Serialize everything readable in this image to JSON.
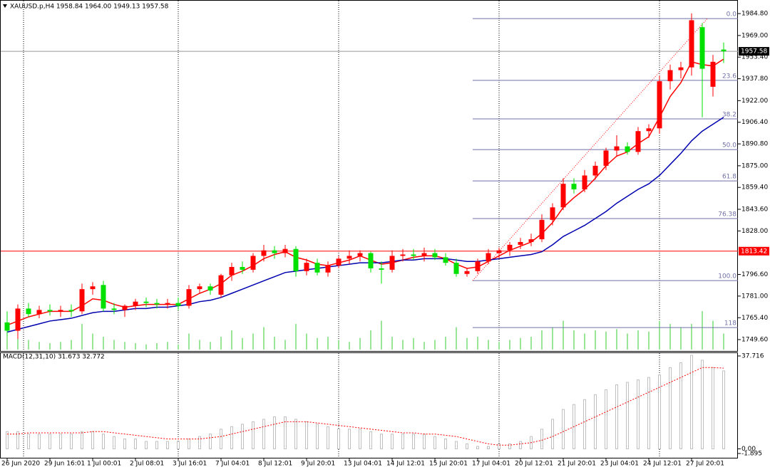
{
  "chart_data": {
    "type": "candlestick",
    "title": "XAUUSD.p,H4  1958.84 1964.00 1949.13 1957.58",
    "categories": [
      "26 Jun 2020",
      null,
      null,
      null,
      "29 Jun 16:01",
      null,
      null,
      null,
      "1 Jul 00:01",
      null,
      null,
      null,
      "2 Jul 08:01",
      null,
      null,
      null,
      "3 Jul 16:01",
      null,
      null,
      null,
      "7 Jul 04:01",
      null,
      null,
      null,
      "8 Jul 12:01",
      null,
      null,
      null,
      "9 Jul 20:01",
      null,
      null,
      null,
      "13 Jul 04:01",
      null,
      null,
      null,
      "14 Jul 12:01",
      null,
      null,
      null,
      "15 Jul 20:01",
      null,
      null,
      null,
      "17 Jul 04:01",
      null,
      null,
      null,
      "20 Jul 12:01",
      null,
      null,
      null,
      "21 Jul 20:01",
      null,
      null,
      null,
      "23 Jul 04:01",
      null,
      null,
      null,
      "24 Jul 12:01",
      null,
      null,
      null,
      "27 Jul 20:01",
      null,
      null,
      null
    ],
    "candles": {
      "open": [
        1762,
        1756,
        1772,
        1768,
        1771,
        1770,
        1771,
        1770,
        1786,
        1789,
        1772,
        1771,
        1774,
        1777,
        1776,
        1775,
        1776,
        1774,
        1786,
        1788,
        1782,
        1796,
        1802,
        1800,
        1810,
        1814,
        1812,
        1815,
        1799,
        1805,
        1798,
        1803,
        1808,
        1810,
        1812,
        1801,
        1800,
        1810,
        1811,
        1810,
        1812,
        1809,
        1805,
        1797,
        1799,
        1806,
        1812,
        1814,
        1818,
        1820,
        1822,
        1836,
        1845,
        1862,
        1858,
        1868,
        1875,
        1886,
        1889,
        1885,
        1900,
        1902,
        1936,
        1944,
        1946,
        1975,
        1932,
        1958.84
      ],
      "high": [
        1770,
        1775,
        1776,
        1774,
        1775,
        1774,
        1775,
        1790,
        1791,
        1792,
        1776,
        1775,
        1779,
        1780,
        1779,
        1779,
        1780,
        1789,
        1790,
        1790,
        1797,
        1805,
        1806,
        1812,
        1818,
        1817,
        1818,
        1817,
        1808,
        1808,
        1806,
        1810,
        1814,
        1814,
        1813,
        1806,
        1814,
        1815,
        1815,
        1816,
        1815,
        1812,
        1808,
        1801,
        1808,
        1815,
        1816,
        1820,
        1823,
        1826,
        1840,
        1848,
        1866,
        1866,
        1872,
        1878,
        1888,
        1897,
        1892,
        1903,
        1905,
        1940,
        1948,
        1950,
        1985,
        1978,
        1955,
        1964.0
      ],
      "low": [
        1752,
        1750,
        1766,
        1765,
        1767,
        1766,
        1766,
        1768,
        1782,
        1770,
        1768,
        1766,
        1771,
        1773,
        1772,
        1772,
        1771,
        1772,
        1783,
        1782,
        1780,
        1792,
        1797,
        1798,
        1806,
        1808,
        1809,
        1795,
        1796,
        1796,
        1795,
        1801,
        1804,
        1806,
        1798,
        1790,
        1798,
        1806,
        1807,
        1806,
        1807,
        1803,
        1795,
        1795,
        1797,
        1804,
        1808,
        1810,
        1815,
        1817,
        1820,
        1832,
        1843,
        1855,
        1856,
        1865,
        1872,
        1882,
        1883,
        1883,
        1895,
        1898,
        1930,
        1938,
        1940,
        1910,
        1925,
        1949.13
      ],
      "close": [
        1756,
        1772,
        1768,
        1771,
        1770,
        1771,
        1770,
        1786,
        1788,
        1772,
        1771,
        1774,
        1777,
        1776,
        1775,
        1776,
        1774,
        1786,
        1788,
        1785,
        1796,
        1802,
        1800,
        1810,
        1814,
        1812,
        1815,
        1799,
        1805,
        1798,
        1803,
        1808,
        1810,
        1812,
        1801,
        1800,
        1810,
        1811,
        1810,
        1812,
        1809,
        1805,
        1797,
        1799,
        1806,
        1812,
        1814,
        1818,
        1820,
        1822,
        1836,
        1845,
        1862,
        1858,
        1868,
        1875,
        1886,
        1889,
        1885,
        1900,
        1902,
        1936,
        1944,
        1946,
        1980,
        1945,
        1950,
        1957.58
      ]
    },
    "up_color": "#ff0000",
    "down_color": "#00e000",
    "moving_averages": [
      {
        "color": "#ff0000",
        "values": [
          1760,
          1763,
          1766,
          1768,
          1770,
          1770,
          1770,
          1774,
          1779,
          1778,
          1775,
          1773,
          1774,
          1775,
          1775,
          1775,
          1775,
          1779,
          1783,
          1786,
          1790,
          1796,
          1799,
          1803,
          1808,
          1811,
          1813,
          1809,
          1807,
          1804,
          1803,
          1805,
          1807,
          1810,
          1807,
          1804,
          1805,
          1807,
          1809,
          1810,
          1810,
          1808,
          1804,
          1801,
          1802,
          1806,
          1810,
          1814,
          1817,
          1820,
          1826,
          1834,
          1845,
          1852,
          1858,
          1866,
          1875,
          1882,
          1885,
          1891,
          1896,
          1910,
          1925,
          1935,
          1950,
          1948,
          1947,
          1952
        ]
      },
      {
        "color": "#0000b0",
        "values": [
          1755,
          1757,
          1759,
          1761,
          1763,
          1764,
          1765,
          1767,
          1769,
          1770,
          1770,
          1771,
          1772,
          1772,
          1773,
          1773,
          1774,
          1775,
          1777,
          1778,
          1780,
          1783,
          1786,
          1789,
          1792,
          1795,
          1798,
          1799,
          1800,
          1801,
          1802,
          1803,
          1804,
          1805,
          1805,
          1805,
          1806,
          1807,
          1807,
          1808,
          1808,
          1808,
          1807,
          1806,
          1806,
          1807,
          1808,
          1809,
          1810,
          1811,
          1813,
          1818,
          1824,
          1828,
          1832,
          1837,
          1842,
          1848,
          1853,
          1858,
          1862,
          1868,
          1876,
          1884,
          1893,
          1900,
          1905,
          1910
        ]
      }
    ],
    "volume": {
      "color": "#33cc33",
      "values": [
        30,
        20,
        15,
        12,
        10,
        12,
        15,
        40,
        25,
        20,
        15,
        12,
        10,
        8,
        10,
        12,
        8,
        25,
        15,
        12,
        20,
        30,
        18,
        25,
        35,
        20,
        15,
        40,
        25,
        18,
        20,
        15,
        12,
        18,
        30,
        45,
        20,
        15,
        18,
        12,
        15,
        20,
        35,
        18,
        20,
        15,
        12,
        15,
        18,
        20,
        30,
        35,
        45,
        30,
        25,
        30,
        28,
        32,
        25,
        30,
        28,
        45,
        40,
        35,
        40,
        60,
        45,
        25
      ]
    },
    "ylim": [
      1741.4,
      1994.6
    ],
    "yticks": [
      {
        "value": 1984.8,
        "label": "1984.80"
      },
      {
        "value": 1969,
        "label": "1969.00"
      },
      {
        "value": 1953.4,
        "label": "1953.40"
      },
      {
        "value": 1937.8,
        "label": "1937.80"
      },
      {
        "value": 1922,
        "label": "1922.00"
      },
      {
        "value": 1906.4,
        "label": "1906.40"
      },
      {
        "value": 1890.8,
        "label": "1890.80"
      },
      {
        "value": 1875,
        "label": "1875.00"
      },
      {
        "value": 1859.4,
        "label": "1859.40"
      },
      {
        "value": 1843.6,
        "label": "1843.60"
      },
      {
        "value": 1828,
        "label": "1828.00"
      },
      {
        "value": 1796.6,
        "label": "1796.60"
      },
      {
        "value": 1781,
        "label": "1781.00"
      },
      {
        "value": 1765.4,
        "label": "1765.40"
      },
      {
        "value": 1749.6,
        "label": "1749.60"
      }
    ],
    "price_lines": [
      {
        "value": 1957.58,
        "color": "#000000"
      },
      {
        "value": 1813.42,
        "color": "#ff0000"
      }
    ],
    "fibonacci": {
      "color": "#6f6fa8",
      "levels": [
        {
          "label": "0.0",
          "value": 1981.2
        },
        {
          "label": "23.6",
          "value": 1936.6
        },
        {
          "label": "38.2",
          "value": 1908.8
        },
        {
          "label": "50.0",
          "value": 1886.7
        },
        {
          "label": "61.8",
          "value": 1864.1
        },
        {
          "label": "76.38",
          "value": 1836.9
        },
        {
          "label": "100.0",
          "value": 1792.2
        },
        {
          "label": "118",
          "value": 1758.3
        }
      ]
    },
    "macd": {
      "title": "MACD(12,31,10) 31.673 32.772",
      "ylim": [
        -1.895,
        37.716
      ],
      "yticks": [
        37.716,
        {
          "value": 0,
          "label": "0.00"
        },
        -1.895
      ],
      "histogram_color": "#c0c0c0",
      "signal_color": "#ff0000",
      "histogram": [
        7,
        7,
        6,
        6,
        6,
        6,
        6,
        7,
        7,
        6,
        5,
        4,
        4,
        3,
        3,
        3,
        3,
        4,
        5,
        6,
        8,
        9,
        10,
        11,
        12,
        13,
        13,
        12,
        11,
        10,
        9,
        8,
        8,
        8,
        7,
        6,
        6,
        6,
        6,
        6,
        5,
        4,
        3,
        2,
        1,
        1,
        2,
        2,
        3,
        5,
        8,
        12,
        16,
        18,
        20,
        22,
        24,
        26,
        27,
        28,
        29,
        30,
        33,
        35,
        38,
        36,
        33,
        31.673
      ],
      "signal": [
        6,
        6,
        6.5,
        6.5,
        6.5,
        6.5,
        6.5,
        6.5,
        7,
        7,
        6.5,
        6,
        5.5,
        5,
        4.5,
        4,
        4,
        4,
        4,
        4.5,
        5,
        6,
        7,
        8,
        9,
        10,
        11,
        11,
        11,
        10.5,
        10,
        9.5,
        9,
        8.5,
        8,
        7.5,
        7,
        6.5,
        6.5,
        6,
        6,
        5.5,
        5,
        4,
        3,
        2,
        1.5,
        1.5,
        2,
        2.5,
        3.5,
        5,
        7,
        9,
        11,
        13,
        15,
        17,
        19,
        21,
        23,
        25,
        27,
        29,
        31,
        33,
        33,
        32.772
      ]
    }
  }
}
